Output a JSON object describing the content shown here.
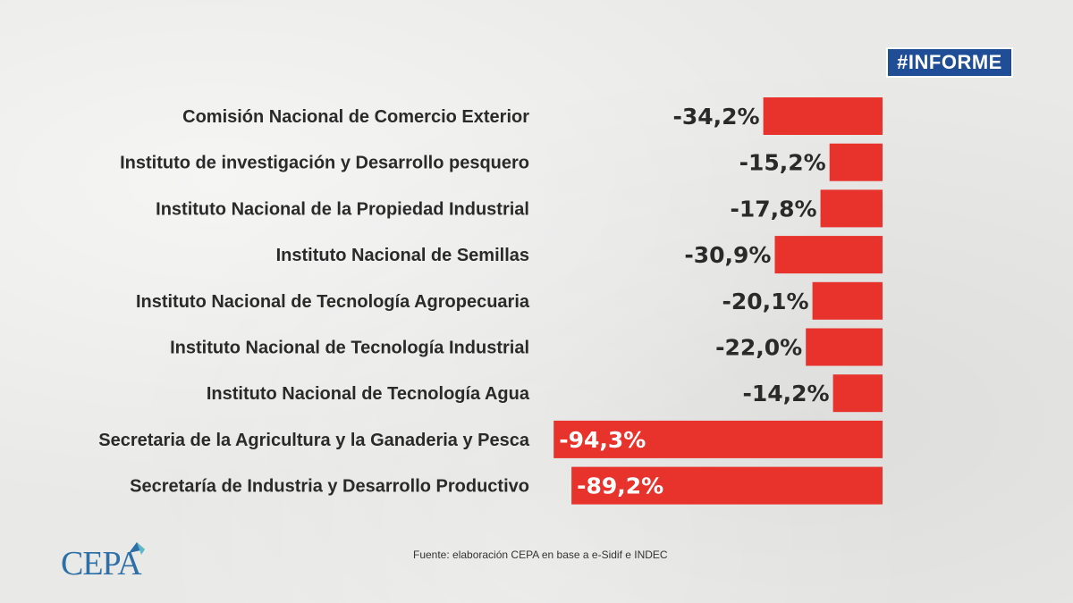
{
  "badge": "#INFORME",
  "source": "Fuente: elaboración CEPA en base a e-Sidif e INDEC",
  "logo": "CEPA",
  "colors": {
    "bar": "#e8322c",
    "badge": "#1f4e96",
    "text": "#2a2a2a"
  },
  "chart_data": {
    "type": "bar",
    "orientation": "horizontal",
    "title": "",
    "xlabel": "",
    "ylabel": "",
    "categories": [
      "Comisión Nacional de Comercio Exterior",
      "Instituto de investigación y Desarrollo pesquero",
      "Instituto Nacional de la Propiedad Industrial",
      "Instituto Nacional de Semillas",
      "Instituto Nacional de Tecnología Agropecuaria",
      "Instituto Nacional de Tecnología Industrial",
      "Instituto Nacional de Tecnología Agua",
      "Secretaria de la Agricultura y la Ganaderia y Pesca",
      "Secretaría de Industria y Desarrollo Productivo"
    ],
    "values": [
      -34.2,
      -15.2,
      -17.8,
      -30.9,
      -20.1,
      -22.0,
      -14.2,
      -94.3,
      -89.2
    ],
    "value_labels": [
      "-34,2%",
      "-15,2%",
      "-17,8%",
      "-30,9%",
      "-20,1%",
      "-22,0%",
      "-14,2%",
      "-94,3%",
      "-89,2%"
    ],
    "grid": false
  }
}
